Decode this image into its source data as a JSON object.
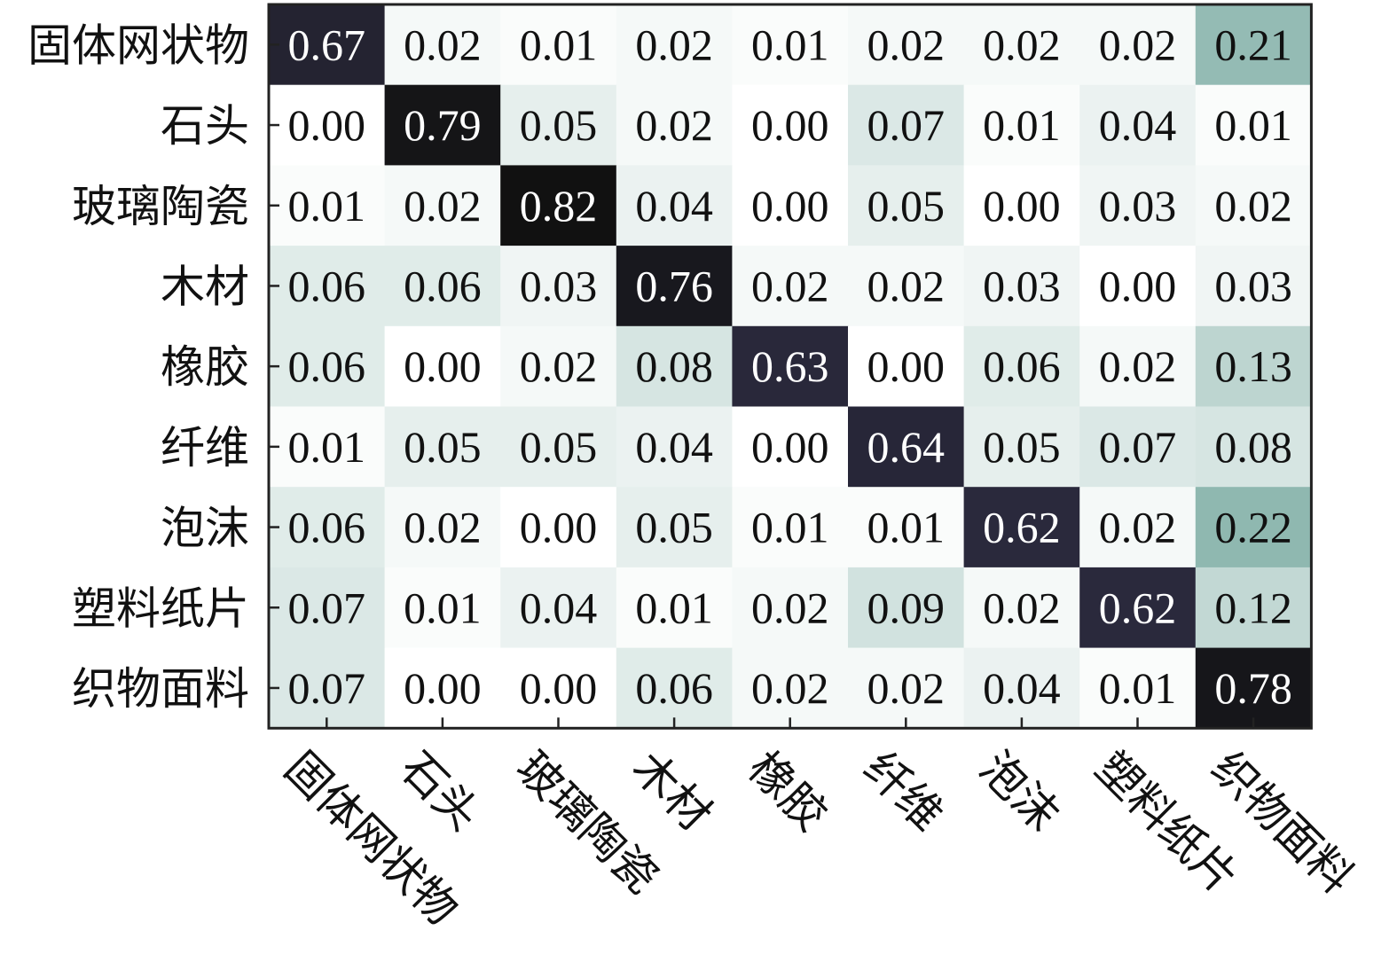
{
  "chart_data": {
    "type": "heatmap",
    "title": "",
    "xlabel": "",
    "ylabel": "",
    "row_labels": [
      "固体网状物",
      "石头",
      "玻璃陶瓷",
      "木材",
      "橡胶",
      "纤维",
      "泡沫",
      "塑料纸片",
      "织物面料"
    ],
    "col_labels": [
      "固体网状物",
      "石头",
      "玻璃陶瓷",
      "木材",
      "橡胶",
      "纤维",
      "泡沫",
      "塑料纸片",
      "织物面料"
    ],
    "values": [
      [
        0.67,
        0.02,
        0.01,
        0.02,
        0.01,
        0.02,
        0.02,
        0.02,
        0.21
      ],
      [
        0.0,
        0.79,
        0.05,
        0.02,
        0.0,
        0.07,
        0.01,
        0.04,
        0.01
      ],
      [
        0.01,
        0.02,
        0.82,
        0.04,
        0.0,
        0.05,
        0.0,
        0.03,
        0.02
      ],
      [
        0.06,
        0.06,
        0.03,
        0.76,
        0.02,
        0.02,
        0.03,
        0.0,
        0.03
      ],
      [
        0.06,
        0.0,
        0.02,
        0.08,
        0.63,
        0.0,
        0.06,
        0.02,
        0.13
      ],
      [
        0.01,
        0.05,
        0.05,
        0.04,
        0.0,
        0.64,
        0.05,
        0.07,
        0.08
      ],
      [
        0.06,
        0.02,
        0.0,
        0.05,
        0.01,
        0.01,
        0.62,
        0.02,
        0.22
      ],
      [
        0.07,
        0.01,
        0.04,
        0.01,
        0.02,
        0.09,
        0.02,
        0.62,
        0.12
      ],
      [
        0.07,
        0.0,
        0.0,
        0.06,
        0.02,
        0.02,
        0.04,
        0.01,
        0.78
      ]
    ],
    "value_format": "0.00",
    "color_scale": {
      "low": "#ffffff",
      "mid": "#8fb8b0",
      "high": "#111111",
      "dark_tint": "#2b2a3e"
    },
    "grid": false,
    "legend": "none"
  }
}
